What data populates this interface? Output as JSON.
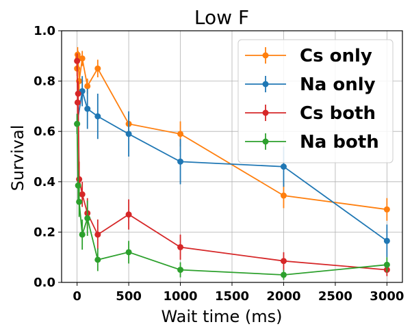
{
  "chart_data": {
    "type": "line",
    "title": "Low F",
    "xlabel": "Wait time (ms)",
    "ylabel": "Survival",
    "xlim": [
      -150,
      3150
    ],
    "ylim": [
      0.0,
      1.0
    ],
    "xticks": [
      0,
      500,
      1000,
      1500,
      2000,
      2500,
      3000
    ],
    "yticks": [
      0.0,
      0.2,
      0.4,
      0.6,
      0.8,
      1.0
    ],
    "xtick_labels": [
      "0",
      "500",
      "1000",
      "1500",
      "2000",
      "2500",
      "3000"
    ],
    "ytick_labels": [
      "0.0",
      "0.2",
      "0.4",
      "0.6",
      "0.8",
      "1.0"
    ],
    "grid": true,
    "legend_position": "top-right",
    "series": [
      {
        "name": "Cs only",
        "color": "#ff7f0e",
        "x": [
          0,
          5,
          10,
          20,
          50,
          100,
          200,
          500,
          1000,
          2000,
          3000
        ],
        "y": [
          0.85,
          0.905,
          0.89,
          0.8,
          0.89,
          0.78,
          0.85,
          0.63,
          0.59,
          0.345,
          0.29
        ],
        "err": [
          0.03,
          0.03,
          0.03,
          0.05,
          0.03,
          0.03,
          0.035,
          0.04,
          0.05,
          0.05,
          0.045
        ]
      },
      {
        "name": "Na only",
        "color": "#1f77b4",
        "x": [
          0,
          50,
          100,
          200,
          500,
          1000,
          2000,
          3000
        ],
        "y": [
          0.63,
          0.76,
          0.69,
          0.66,
          0.59,
          0.48,
          0.46,
          0.165
        ],
        "err": [
          0.04,
          0.06,
          0.08,
          0.09,
          0.09,
          0.09,
          0.08,
          0.065
        ]
      },
      {
        "name": "Cs both",
        "color": "#d62728",
        "x": [
          0,
          5,
          10,
          20,
          50,
          100,
          200,
          500,
          1000,
          2000,
          3000
        ],
        "y": [
          0.88,
          0.715,
          0.75,
          0.41,
          0.35,
          0.275,
          0.19,
          0.27,
          0.14,
          0.085,
          0.05
        ],
        "err": [
          0.03,
          0.05,
          0.05,
          0.07,
          0.05,
          0.06,
          0.06,
          0.06,
          0.05,
          0.035,
          0.025
        ]
      },
      {
        "name": "Na both",
        "color": "#2ca02c",
        "x": [
          0,
          10,
          20,
          50,
          100,
          200,
          500,
          1000,
          2000,
          3000
        ],
        "y": [
          0.63,
          0.385,
          0.32,
          0.19,
          0.255,
          0.09,
          0.12,
          0.05,
          0.03,
          0.07
        ],
        "err": [
          0.04,
          0.06,
          0.06,
          0.06,
          0.07,
          0.045,
          0.045,
          0.03,
          0.02,
          0.03
        ]
      }
    ]
  }
}
